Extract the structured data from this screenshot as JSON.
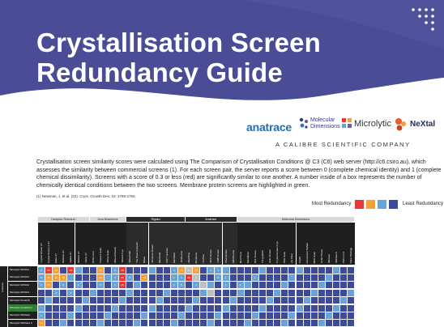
{
  "header": {
    "title_line1": "Crystallisation Screen",
    "title_line2": "Redundancy Guide"
  },
  "logos": {
    "anatrace": "anatrace",
    "molecular_dimensions_line1": "Molecular",
    "molecular_dimensions_line2": "Dimensions",
    "microlytic": "Microlytic",
    "nextal": "NeXtal"
  },
  "company_tagline": "A CALIBRE SCIENTIFIC COMPANY",
  "description": "Crystallisation screen similarity scores were calculated using The Comparison of Crystallisation Conditions @ C3 (C6) web server (http://c6.csiro.au), which assesses the similarity between commercial screens (1). For each screen pair, the server reports a score between 0 (complete chemical identity) and 1 (complete chemical dissimilarity). Screens with a score of 0.3 or less (red) are significantly similar to one another. A number inside of a box represents the number of chemically identical conditions between the two screens. Membrane protein screens are highlighted in green.",
  "reference": "(1) Newman, J. et al. (22). Cryst. Growth Des. 18: 2788-2793.",
  "legend": {
    "most_label": "Most Redundancy",
    "least_label": "Least Redundancy",
    "colors": [
      "#e53935",
      "#f5a03c",
      "#6aa3d8",
      "#3d4a9a"
    ]
  },
  "table": {
    "side_label": "Anatrace",
    "groups": [
      "Hampton Research",
      "Jena Bioscience",
      "Rigaku",
      "Anatrace",
      "Molecular Dimensions"
    ],
    "dark_groups": [
      2,
      3
    ],
    "columns": [
      "Crystal Screen HT",
      "Crystal Screen 2 HT",
      "Index HT",
      "PEG/Ion HT",
      "SaltRx HT",
      "PEGRx HT",
      "Natrix HT",
      "JCSG Core",
      "Classics Suite",
      "PEGs Suite",
      "Wizard Classic",
      "Wizard Cryo",
      "Wizard I&II",
      "The Stura Footprint",
      "Midas",
      "Structure Screen",
      "MemGold",
      "PACT premier",
      "MemStart",
      "JCSG-plus",
      "MemPlus",
      "Morpheus",
      "ProPlex",
      "BCS Screen",
      "LMB Screen",
      "PGA Screen",
      "MIDAS plus",
      "MemTrans",
      "MemMeso",
      "SG1 Screen",
      "PS gradient",
      "Helix Screen",
      "Crystal Screen Cryo",
      "PEG Suite",
      "pH Clear",
      "Top96",
      "Ammonium Sulfate",
      "MPD Suite",
      "Cubic Phase",
      "Mbclass",
      "Mbclass II",
      "PEG Ion 2",
      "Clear Strategy"
    ],
    "rows": [
      "Microlytic MCSG1",
      "Microlytic MCSG2",
      "Microlytic MCSG3",
      "Microlytic MCSG4",
      "Microlytic ProteCS",
      "Microlytic Crystal Ion",
      "Microlytic MbClass",
      "Microlytic MbClass II"
    ],
    "highlight_rows": [
      5
    ],
    "cells": [
      [
        "5",
        "23",
        "14",
        "",
        "23",
        "",
        "",
        "",
        "13",
        "",
        "8",
        "25",
        "",
        "",
        "",
        "",
        "",
        "",
        "4",
        "14",
        "13",
        "13",
        "",
        "1",
        "3",
        "",
        "",
        "",
        "",
        "",
        "",
        "",
        "",
        "",
        "",
        "",
        "",
        "",
        "",
        "",
        "",
        "",
        "",
        ""
      ],
      [
        "8",
        "11",
        "11",
        "16",
        "",
        "",
        "",
        "",
        "13",
        "",
        "3",
        "35",
        "5",
        "",
        "13",
        "",
        "",
        "",
        "1",
        "5",
        "28",
        "9",
        "",
        "",
        "5",
        "1",
        "",
        "",
        "",
        "1",
        "",
        "",
        "",
        "",
        "",
        "",
        "",
        "",
        "",
        "",
        "",
        "",
        "",
        ""
      ],
      [
        "2",
        "13",
        "",
        "2",
        "",
        "1",
        "",
        "",
        "8",
        "",
        "5",
        "25",
        "",
        "",
        "",
        "",
        "",
        "",
        "1",
        "5",
        "",
        "1",
        "",
        "",
        "",
        "1",
        "",
        "1",
        "",
        "",
        "",
        "",
        "",
        "",
        "",
        "",
        "",
        "",
        "",
        "",
        "",
        "",
        "",
        ""
      ],
      [
        "",
        "",
        "2",
        "",
        "3",
        "",
        "",
        "",
        "",
        "",
        "",
        "",
        "",
        "",
        "",
        "",
        "",
        "",
        "",
        "",
        "",
        "",
        "",
        "",
        "",
        "",
        "",
        "",
        "",
        "",
        "",
        "",
        "",
        "",
        "",
        "",
        "",
        "",
        "",
        "",
        "",
        "",
        "",
        ""
      ],
      [
        "",
        "",
        "",
        "",
        "",
        "",
        "",
        "",
        "",
        "",
        "",
        "",
        "",
        "",
        "",
        "",
        "",
        "",
        "",
        "",
        "",
        "",
        "",
        "",
        "",
        "",
        "",
        "",
        "",
        "",
        "",
        "",
        "",
        "",
        "",
        "",
        "",
        "",
        "",
        "",
        "",
        "",
        "",
        ""
      ],
      [
        "",
        "",
        "",
        "",
        "",
        "",
        "",
        "",
        "",
        "",
        "",
        "",
        "",
        "",
        "",
        "",
        "",
        "",
        "",
        "",
        "",
        "",
        "",
        "",
        "",
        "",
        "",
        "",
        "",
        "",
        "",
        "",
        "",
        "",
        "",
        "",
        "",
        "",
        "",
        "",
        "",
        "",
        "",
        ""
      ],
      [
        "1",
        "",
        "",
        "",
        "",
        "",
        "",
        "",
        "",
        "",
        "",
        "",
        "",
        "",
        "",
        "",
        "",
        "",
        "",
        "",
        "",
        "",
        "",
        "",
        "",
        "",
        "",
        "",
        "",
        "",
        "",
        "",
        "",
        "",
        "",
        "",
        "",
        "",
        "",
        "",
        "",
        "",
        "",
        ""
      ],
      [
        "12",
        "",
        "",
        "",
        "",
        "",
        "",
        "",
        "",
        "",
        "",
        "",
        "",
        "",
        "",
        "",
        "",
        "",
        "",
        "",
        "",
        "",
        "",
        "",
        "",
        "",
        "",
        "",
        "",
        "",
        "",
        "",
        "",
        "",
        "",
        "",
        "",
        "",
        "",
        "",
        "",
        "",
        "",
        ""
      ]
    ]
  }
}
